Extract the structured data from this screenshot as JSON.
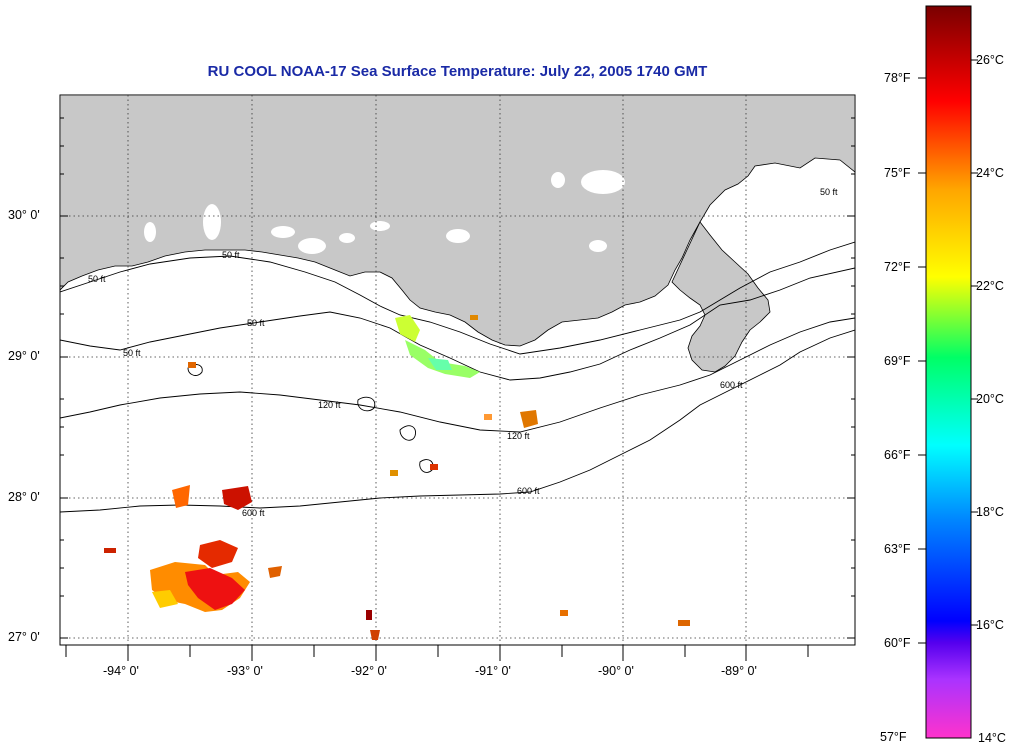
{
  "title": "RU COOL  NOAA-17  Sea Surface Temperature:  July 22, 2005 1740 GMT",
  "map": {
    "lat_labels": [
      "30° 0'",
      "29° 0'",
      "28° 0'",
      "27° 0'"
    ],
    "lon_labels": [
      "-94° 0'",
      "-93° 0'",
      "-92° 0'",
      "-91° 0'",
      "-90° 0'",
      "-89° 0'"
    ],
    "contour_labels": [
      "50 ft",
      "120 ft",
      "600 ft"
    ],
    "land_color": "#c8c8c8",
    "ocean_color": "#ffffff"
  },
  "colorbar": {
    "f_labels": [
      "78°F",
      "75°F",
      "72°F",
      "69°F",
      "66°F",
      "63°F",
      "60°F",
      "57°F"
    ],
    "c_labels": [
      "26°C",
      "24°C",
      "22°C",
      "20°C",
      "18°C",
      "16°C",
      "14°C"
    ],
    "colors": [
      "#ff66cc",
      "#cc33ff",
      "#3300ff",
      "#00ffff",
      "#00ff66",
      "#ffff00",
      "#ffa500",
      "#ff0000",
      "#8b0000"
    ]
  }
}
